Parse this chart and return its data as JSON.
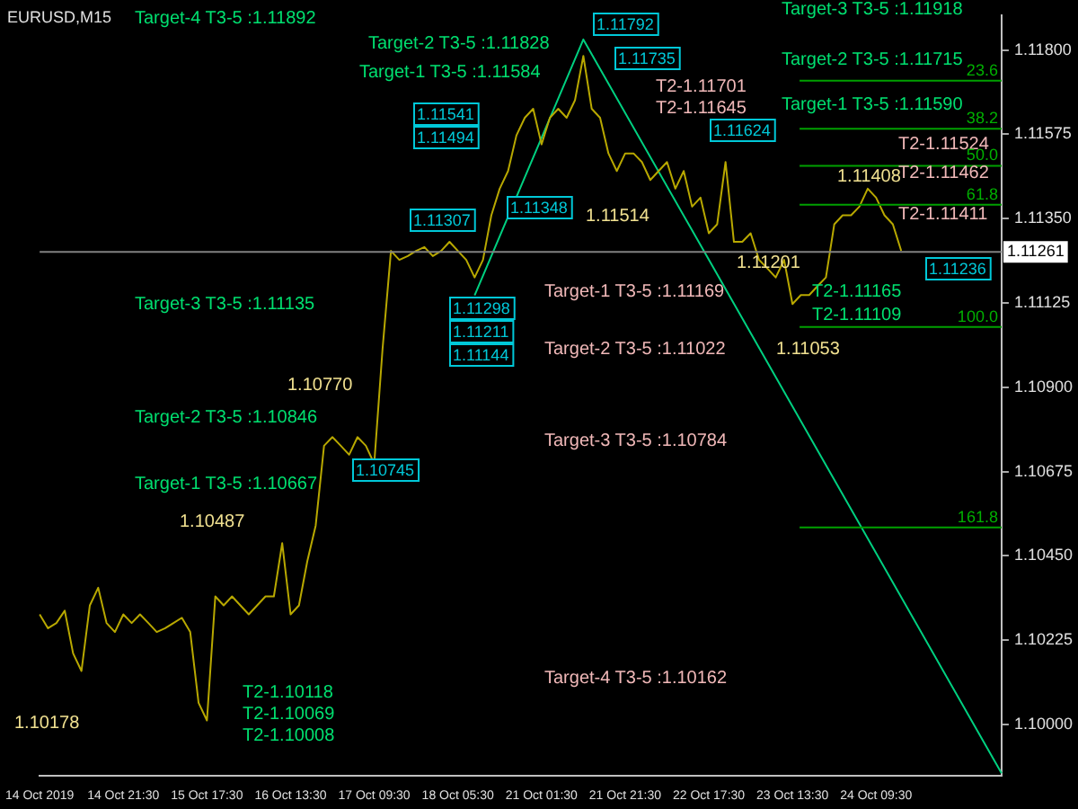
{
  "chart_data": {
    "type": "line",
    "title": "EURUSD,M15",
    "categories": [
      "14 Oct 2019",
      null,
      null,
      null,
      null,
      null,
      null,
      null,
      null,
      null,
      "14 Oct 21:30",
      null,
      null,
      null,
      null,
      null,
      null,
      null,
      null,
      null,
      "15 Oct 17:30",
      null,
      null,
      null,
      null,
      null,
      null,
      null,
      null,
      null,
      "16 Oct 13:30",
      null,
      null,
      null,
      null,
      null,
      null,
      null,
      null,
      null,
      "17 Oct 09:30",
      null,
      null,
      null,
      null,
      null,
      null,
      null,
      null,
      null,
      "18 Oct 05:30",
      null,
      null,
      null,
      null,
      null,
      null,
      null,
      null,
      null,
      "21 Oct 01:30",
      null,
      null,
      null,
      null,
      null,
      null,
      null,
      null,
      null,
      "21 Oct 21:30",
      null,
      null,
      null,
      null,
      null,
      null,
      null,
      null,
      null,
      "22 Oct 17:30",
      null,
      null,
      null,
      null,
      null,
      null,
      null,
      null,
      null,
      "23 Oct 13:30",
      null,
      null,
      null,
      null,
      null,
      null,
      null,
      null,
      null,
      "24 Oct 09:30",
      null,
      null,
      null,
      null,
      null,
      null,
      null,
      null,
      null,
      null,
      null,
      null,
      null,
      null,
      null
    ],
    "series": [
      {
        "color": "#b8a800",
        "values": [
          1.10294,
          1.10257,
          1.10271,
          1.10304,
          1.1019,
          1.10143,
          1.10318,
          1.10365,
          1.10271,
          1.10247,
          1.10294,
          1.10271,
          1.10294,
          1.10271,
          1.10247,
          1.10257,
          1.10271,
          1.10285,
          1.10247,
          1.10058,
          1.10011,
          1.10342,
          1.10318,
          1.10342,
          1.10318,
          1.10294,
          1.10318,
          1.10342,
          1.10342,
          1.10484,
          1.10294,
          1.10318,
          1.10436,
          1.10531,
          1.10744,
          1.10767,
          1.10744,
          1.1072,
          1.10767,
          1.10744,
          1.10696,
          1.11004,
          1.11264,
          1.1124,
          1.1125,
          1.11264,
          1.11274,
          1.1125,
          1.11264,
          1.11288,
          1.11264,
          1.1124,
          1.11193,
          1.1124,
          1.11359,
          1.1143,
          1.11477,
          1.11572,
          1.11619,
          1.11643,
          1.11548,
          1.11619,
          1.11643,
          1.11619,
          1.11666,
          1.11784,
          1.11643,
          1.11619,
          1.11524,
          1.11477,
          1.11524,
          1.11524,
          1.11501,
          1.11453,
          1.11477,
          1.11501,
          1.1143,
          1.11477,
          1.11382,
          1.11406,
          1.11311,
          1.11335,
          1.11501,
          1.11288,
          1.11288,
          1.11311,
          1.1124,
          1.11217,
          1.11193,
          1.1124,
          1.11122,
          1.11146,
          1.11146,
          1.1117,
          1.11193,
          1.11335,
          1.11359,
          1.11359,
          1.11382,
          1.1143,
          1.11406,
          1.11359,
          1.11335,
          1.11264,
          null,
          null,
          null,
          null,
          null,
          null,
          null,
          null,
          null,
          null,
          null,
          null
        ]
      },
      {
        "type": "line",
        "color": "#00d080",
        "values": [
          null,
          null,
          null,
          null,
          null,
          null,
          null,
          null,
          null,
          null,
          null,
          null,
          null,
          null,
          null,
          null,
          null,
          null,
          null,
          null,
          null,
          null,
          null,
          null,
          null,
          null,
          null,
          null,
          null,
          null,
          null,
          null,
          null,
          null,
          null,
          null,
          null,
          null,
          null,
          null,
          null,
          null,
          null,
          null,
          null,
          null,
          null,
          null,
          null,
          null,
          null,
          null,
          1.11145,
          null,
          null,
          null,
          null,
          null,
          null,
          null,
          null,
          null,
          null,
          null,
          null,
          1.11828,
          null,
          null,
          null,
          null,
          null,
          null,
          null,
          null,
          null,
          null,
          null,
          null,
          null,
          null,
          null,
          null,
          null,
          null,
          null,
          null,
          null,
          null,
          null,
          null,
          null,
          null,
          null,
          null,
          null,
          null,
          null,
          null,
          null,
          null,
          null,
          null,
          null,
          null,
          null,
          null,
          null,
          null,
          null,
          null,
          null,
          null,
          null,
          null,
          null,
          1.0987
        ]
      }
    ],
    "ylim": [
      1.09863,
      1.11893
    ],
    "yticks": [
      {
        "value": 1.118,
        "label": "1.11800"
      },
      {
        "value": 1.11575,
        "label": "1.11575"
      },
      {
        "value": 1.1135,
        "label": "1.11350"
      },
      {
        "value": 1.11125,
        "label": "1.11125"
      },
      {
        "value": 1.109,
        "label": "1.10900"
      },
      {
        "value": 1.10675,
        "label": "1.10675"
      },
      {
        "value": 1.1045,
        "label": "1.10450"
      },
      {
        "value": 1.10225,
        "label": "1.10225"
      },
      {
        "value": 1.1,
        "label": "1.10000"
      }
    ],
    "grid": false,
    "legend": false,
    "marker": "none",
    "line_style": "solid",
    "ref_lines": [
      {
        "axis": "y",
        "value": 1.11261,
        "label": "1.11261",
        "color": "#808080"
      },
      {
        "axis": "y",
        "value": 1.11718,
        "color": "#00a000"
      },
      {
        "axis": "y",
        "value": 1.1159,
        "color": "#00a000"
      },
      {
        "axis": "y",
        "value": 1.11491,
        "color": "#00a000"
      },
      {
        "axis": "y",
        "value": 1.11387,
        "color": "#00a000"
      },
      {
        "axis": "y",
        "value": 1.11061,
        "color": "#00a000"
      },
      {
        "axis": "y",
        "value": 1.10526,
        "color": "#00a000"
      }
    ],
    "annotations": [
      "Target-4 T3-5 :1.11892",
      "Target-2 T3-5 :1.11828",
      "Target-1 T3-5 :1.11584",
      "Target-3 T3-5 :1.11135",
      "Target-2 T3-5 :1.10846",
      "Target-1 T3-5 :1.10667",
      "Target-3 T3-5 :1.11918",
      "Target-2 T3-5 :1.11715",
      "Target-1 T3-5 :1.11590",
      "Target-1 T3-5 :1.11169",
      "Target-2 T3-5 :1.11022",
      "Target-3 T3-5 :1.10784",
      "Target-4 T3-5 :1.10162",
      "1.10178",
      "1.10487",
      "1.10770",
      "1.11514",
      "1.11201",
      "1.11053",
      "1.11408",
      "T2-1.10118",
      "T2-1.10069",
      "T2-1.10008",
      "T2-1.11165",
      "T2-1.11109",
      "T2-1.11524",
      "T2-1.11462",
      "T2-1.11411",
      "T2-1.11701",
      "T2-1.11645",
      "1.11792",
      "1.11735",
      "1.11307",
      "1.11348",
      "1.11298",
      "1.11211",
      "1.11144",
      "1.11541",
      "1.11494",
      "1.10745",
      "1.11624",
      "1.11236",
      {
        "text": "23.6",
        "y": 1.11718
      },
      {
        "text": "38.2",
        "y": 1.1159
      },
      {
        "text": "50.0",
        "y": 1.11491
      },
      {
        "text": "61.8",
        "y": 1.11387
      },
      {
        "text": "100.0",
        "y": 1.11061
      },
      {
        "text": "161.8",
        "y": 1.10526
      }
    ]
  }
}
